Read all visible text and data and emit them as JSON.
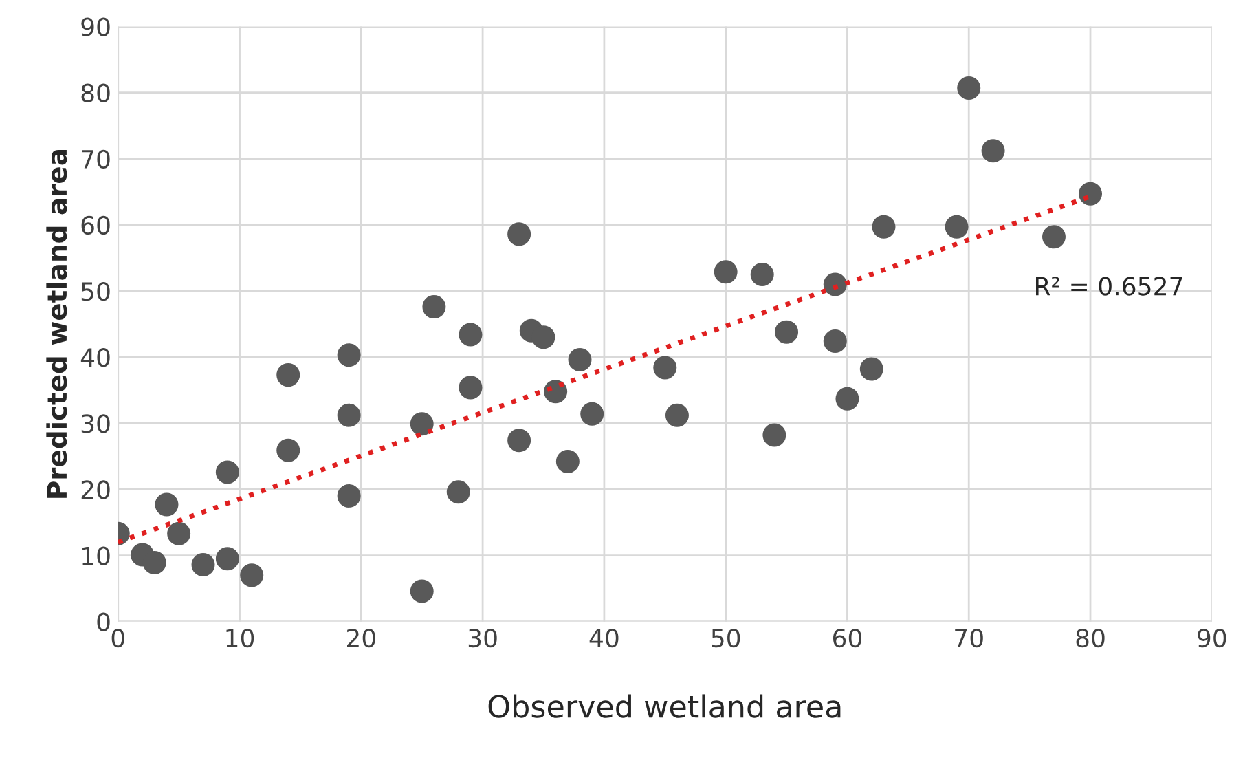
{
  "chart_data": {
    "type": "scatter",
    "xlabel": "Observed wetland area",
    "ylabel": "Predicted wetland area",
    "xlim": [
      0,
      90
    ],
    "ylim": [
      0,
      90
    ],
    "xticks": [
      0,
      10,
      20,
      30,
      40,
      50,
      60,
      70,
      80,
      90
    ],
    "yticks": [
      0,
      10,
      20,
      30,
      40,
      50,
      60,
      70,
      80,
      90
    ],
    "grid": true,
    "series": [
      {
        "color": "#595959",
        "marker": "circle",
        "x": [
          0,
          2,
          3,
          4,
          5,
          7,
          9,
          9,
          11,
          14,
          14,
          19,
          19,
          19,
          25,
          25,
          26,
          28,
          29,
          29,
          33,
          33,
          34,
          35,
          36,
          37,
          38,
          39,
          45,
          46,
          50,
          53,
          54,
          55,
          59,
          59,
          60,
          62,
          63,
          69,
          70,
          72,
          77,
          80
        ],
        "values": [
          13.3,
          10.1,
          8.9,
          17.7,
          13.3,
          8.6,
          9.5,
          22.6,
          7.0,
          37.3,
          25.9,
          40.3,
          31.2,
          19.0,
          4.6,
          29.9,
          47.6,
          19.6,
          43.4,
          35.4,
          58.6,
          27.4,
          44.0,
          43.0,
          34.8,
          24.2,
          39.6,
          31.4,
          38.4,
          31.2,
          52.9,
          52.5,
          28.2,
          43.8,
          51.0,
          42.4,
          33.7,
          38.2,
          59.7,
          59.7,
          80.7,
          71.2,
          58.2,
          64.7
        ]
      },
      {
        "type": "line",
        "color": "#e02020",
        "line_style": "dotted",
        "x": [
          0,
          80
        ],
        "values": [
          12.0,
          64.3
        ]
      }
    ],
    "annotations": [
      "R² = 0.6527"
    ]
  }
}
